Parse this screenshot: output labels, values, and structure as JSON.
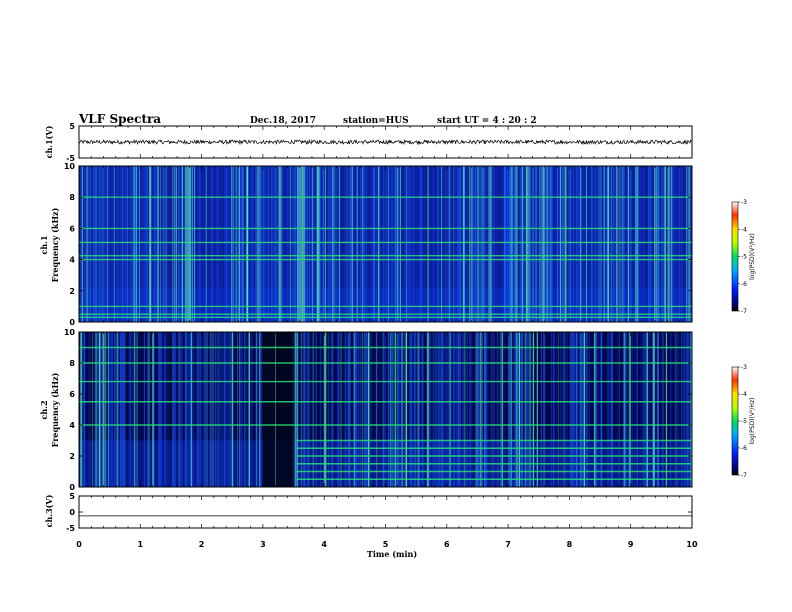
{
  "header": {
    "title": "VLF Spectra",
    "date": "Dec.18, 2017",
    "station": "station=HUS",
    "start": "start  UT  =   4 : 20 : 2"
  },
  "colors": {
    "background": "#00003a",
    "lowBand": "#0a2fc8",
    "line": "#28e07a",
    "trace": "#000000"
  },
  "chart_data": [
    {
      "type": "line",
      "name": "ch.1 waveform",
      "ylabel": "ch.1(V)",
      "ylim": [
        -5,
        5
      ],
      "yticks": [
        "5",
        "-5"
      ],
      "x": [
        0,
        10
      ],
      "values": [
        0,
        0
      ],
      "note_visible": "flat trace near 0 V"
    },
    {
      "type": "heatmap",
      "name": "ch.1 spectrogram",
      "ylabel_top": "ch.1",
      "ylabel": "Frequency  (kHz)",
      "ylim": [
        0,
        10
      ],
      "yticks": [
        "0",
        "2",
        "4",
        "6",
        "8",
        "10"
      ],
      "xlim": [
        0,
        10
      ],
      "colorbar": {
        "label": "log(PSD)(V²/Hz)",
        "ticks": [
          "-3",
          "-4",
          "-5",
          "-6",
          "-7"
        ],
        "range": [
          -7,
          -3
        ]
      },
      "horizontal_lines_khz": [
        0.3,
        0.5,
        1.0,
        4.0,
        4.25,
        5.1,
        6.0,
        8.0
      ],
      "strong_vertical_bands_min": [
        1.75,
        1.8,
        3.6,
        3.65,
        3.9
      ]
    },
    {
      "type": "heatmap",
      "name": "ch.2 spectrogram",
      "ylabel_top": "ch.2",
      "ylabel": "Frequency  (kHz)",
      "ylim": [
        0,
        10
      ],
      "yticks": [
        "0",
        "2",
        "4",
        "6",
        "8",
        "10"
      ],
      "xlim": [
        0,
        10
      ],
      "colorbar": {
        "label": "log(PSD)(V²/Hz)",
        "ticks": [
          "-3",
          "-4",
          "-5",
          "-6",
          "-7"
        ],
        "range": [
          -7,
          -3
        ]
      },
      "horizontal_lines_khz": [
        0.5,
        1.0,
        1.5,
        2.0,
        2.5,
        3.0,
        4.0,
        5.5,
        6.8,
        8.0,
        9.0
      ],
      "quiet_interval_min": [
        3.0,
        3.5
      ]
    },
    {
      "type": "line",
      "name": "ch.3 waveform",
      "ylabel": "ch.3(V)",
      "ylim": [
        -5,
        5
      ],
      "yticks": [
        "5",
        "0",
        "-5"
      ],
      "x": [
        0,
        10
      ],
      "values": [
        -1.2,
        -1.2
      ]
    }
  ],
  "xaxis": {
    "label": "Time  (min)",
    "ticks": [
      "0",
      "1",
      "2",
      "3",
      "4",
      "5",
      "6",
      "7",
      "8",
      "9",
      "10"
    ],
    "range": [
      0,
      10
    ]
  }
}
